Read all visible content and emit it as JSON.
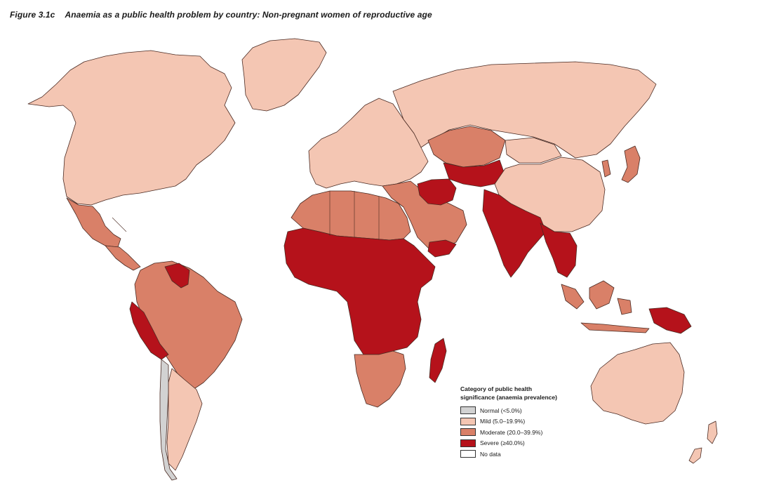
{
  "figure": {
    "number": "Figure 3.1c",
    "title": "Anaemia as a public health problem by country: Non-pregnant women of reproductive age"
  },
  "legend": {
    "title_line1": "Category of public health",
    "title_line2": "significance (anaemia prevalence)",
    "items": [
      {
        "label": "Normal (<5.0%)",
        "color": "#d2d2d2"
      },
      {
        "label": "Mild (5.0–19.9%)",
        "color": "#f4c6b3"
      },
      {
        "label": "Moderate (20.0–39.9%)",
        "color": "#d98068"
      },
      {
        "label": "Severe (≥40.0%)",
        "color": "#b5121b"
      },
      {
        "label": "No data",
        "color": "#ffffff"
      }
    ]
  },
  "colors": {
    "normal": "#d2d2d2",
    "mild": "#f4c6b3",
    "moderate": "#d98068",
    "severe": "#b5121b",
    "no_data": "#ffffff",
    "border": "#4a2a22"
  },
  "regions": [
    {
      "id": "north-america",
      "category": "mild"
    },
    {
      "id": "greenland",
      "category": "mild"
    },
    {
      "id": "mexico",
      "category": "moderate"
    },
    {
      "id": "central-america",
      "category": "moderate"
    },
    {
      "id": "venezuela-guyana",
      "category": "severe"
    },
    {
      "id": "peru-bolivia",
      "category": "severe"
    },
    {
      "id": "brazil",
      "category": "moderate"
    },
    {
      "id": "argentina",
      "category": "mild"
    },
    {
      "id": "chile",
      "category": "normal"
    },
    {
      "id": "europe",
      "category": "mild"
    },
    {
      "id": "russia",
      "category": "mild"
    },
    {
      "id": "kazakhstan",
      "category": "moderate"
    },
    {
      "id": "central-asia",
      "category": "severe"
    },
    {
      "id": "middle-east",
      "category": "moderate"
    },
    {
      "id": "iraq-iran",
      "category": "severe"
    },
    {
      "id": "yemen",
      "category": "severe"
    },
    {
      "id": "north-africa",
      "category": "moderate"
    },
    {
      "id": "sub-saharan-africa",
      "category": "severe"
    },
    {
      "id": "southern-africa",
      "category": "moderate"
    },
    {
      "id": "madagascar",
      "category": "severe"
    },
    {
      "id": "india",
      "category": "severe"
    },
    {
      "id": "china",
      "category": "mild"
    },
    {
      "id": "mongolia",
      "category": "mild"
    },
    {
      "id": "southeast-asia",
      "category": "severe"
    },
    {
      "id": "indonesia",
      "category": "moderate"
    },
    {
      "id": "papua-new-guinea",
      "category": "severe"
    },
    {
      "id": "japan-korea",
      "category": "moderate"
    },
    {
      "id": "australia",
      "category": "mild"
    },
    {
      "id": "new-zealand",
      "category": "mild"
    }
  ]
}
